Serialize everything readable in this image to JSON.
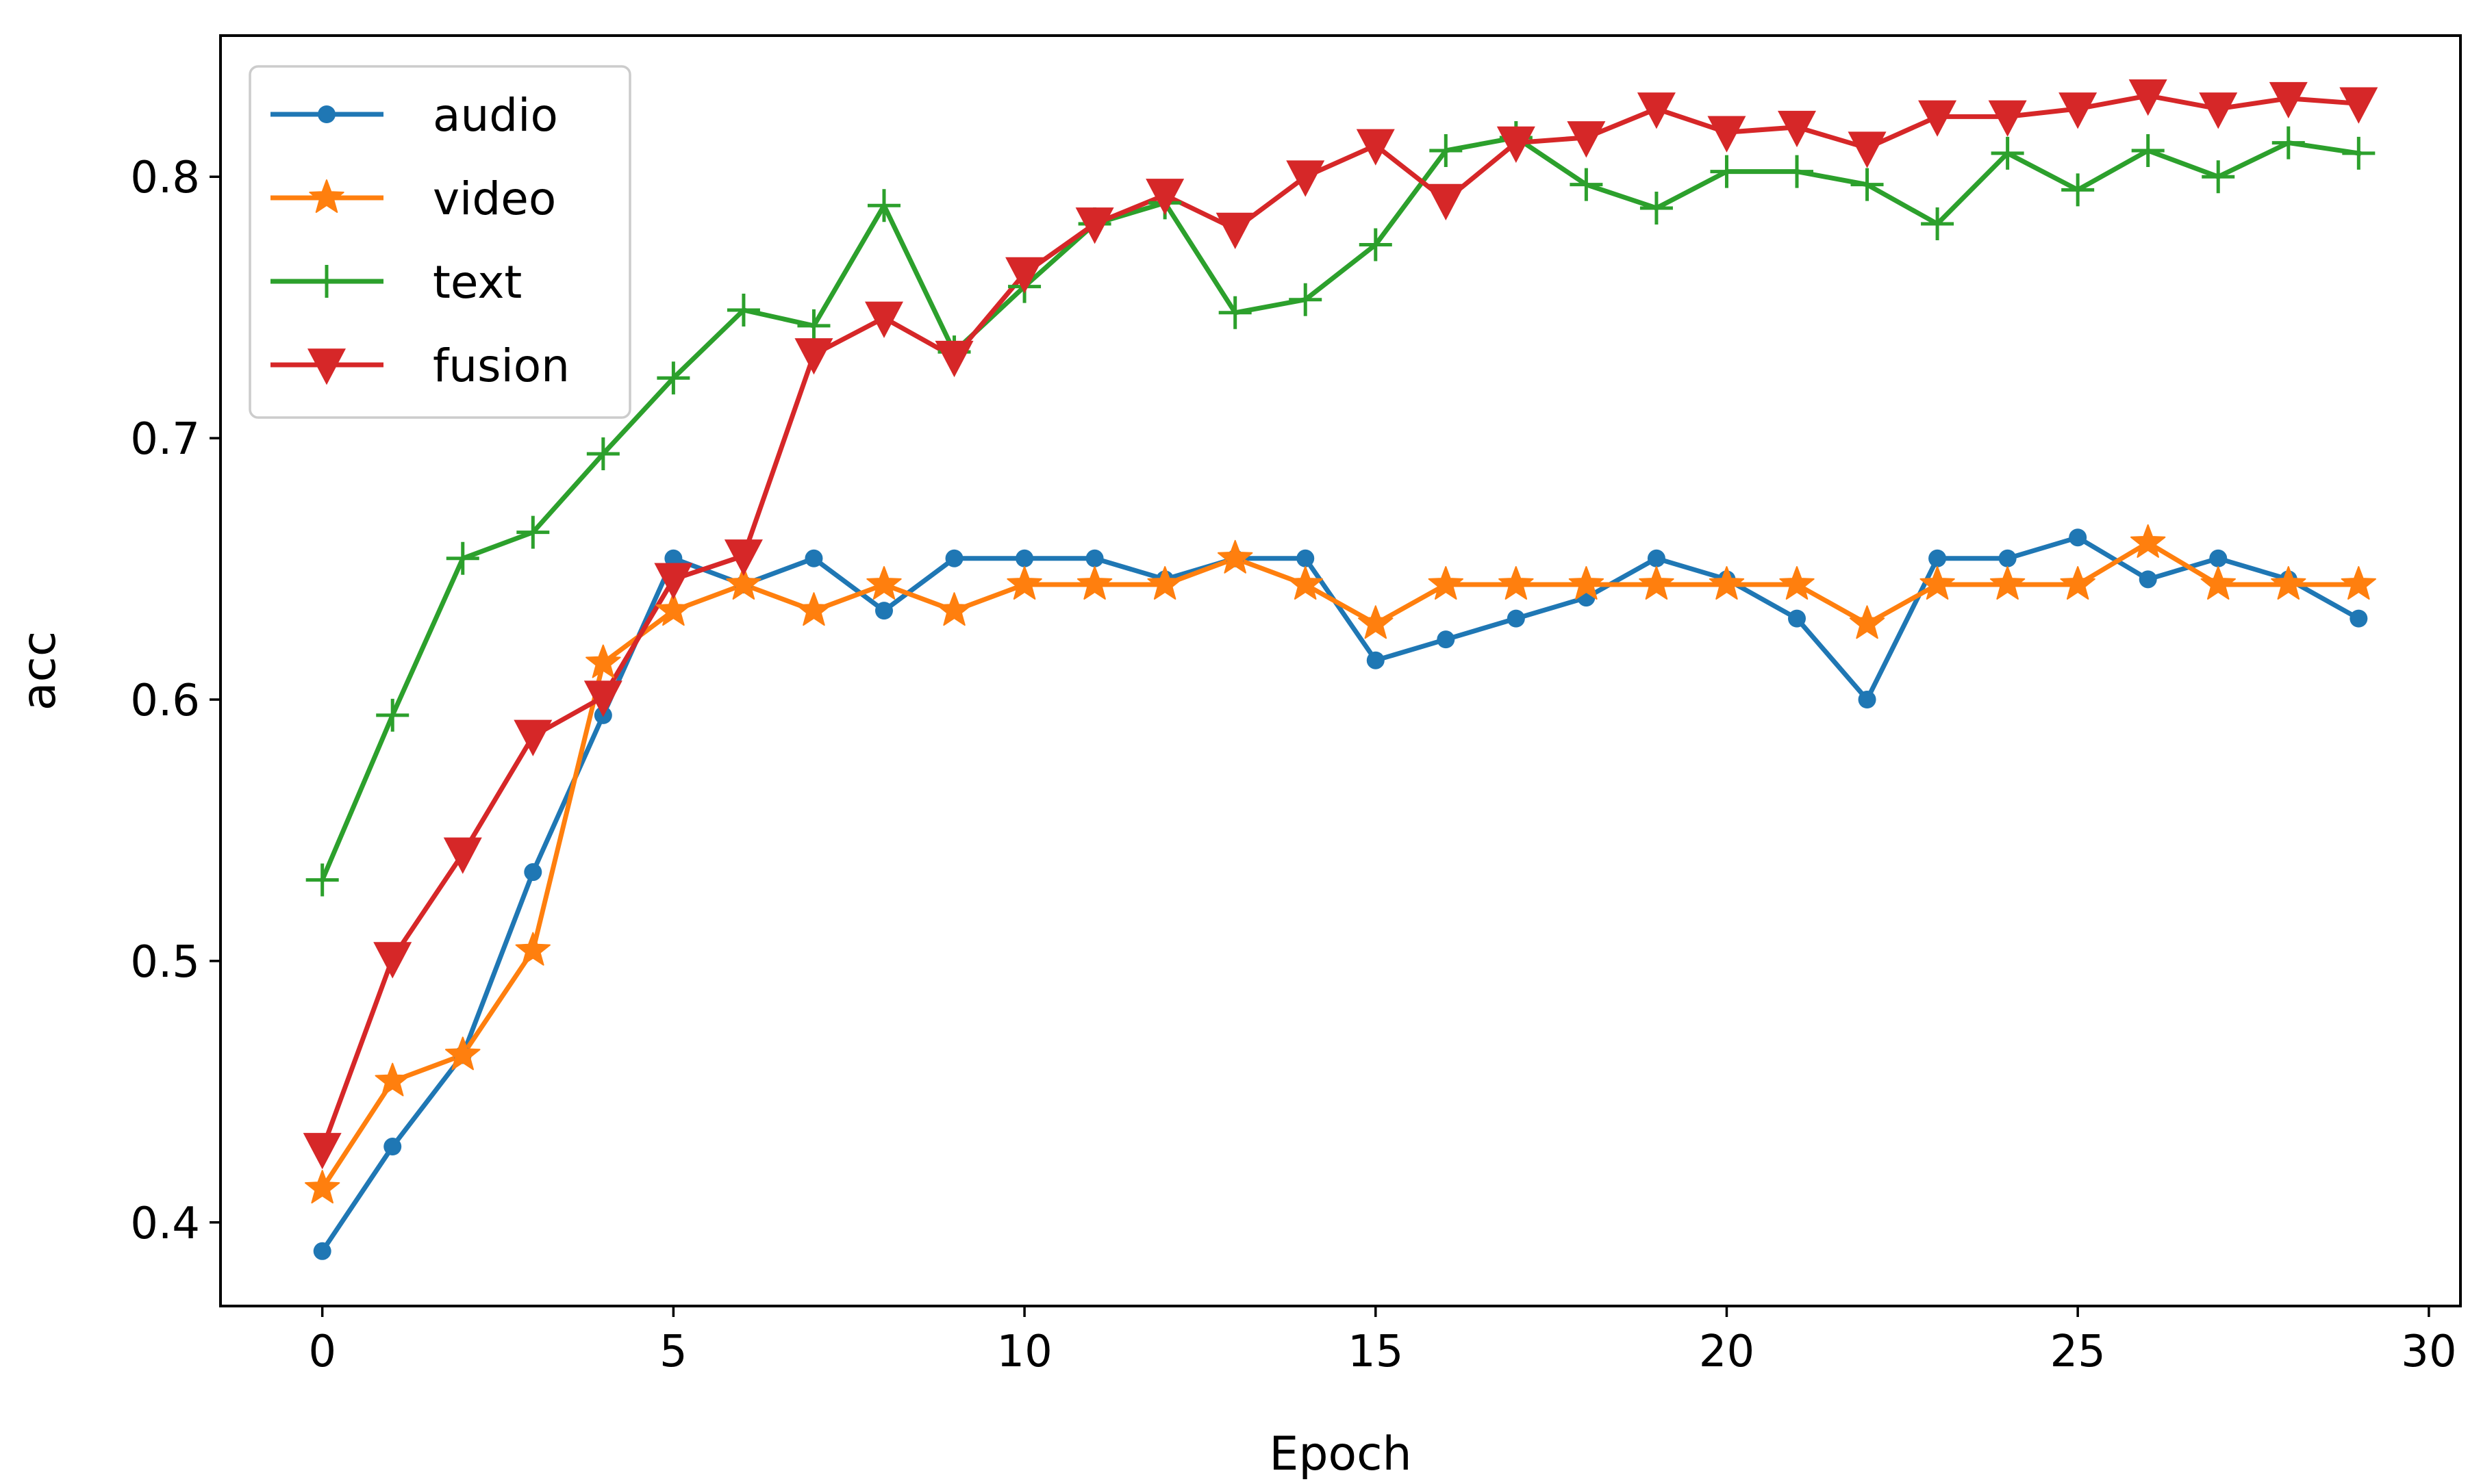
{
  "chart_data": {
    "type": "line",
    "title": "",
    "xlabel": "Epoch",
    "ylabel": "acc",
    "xlim": [
      -1.45,
      30.45
    ],
    "ylim": [
      0.368,
      0.854
    ],
    "xticks": [
      0,
      5,
      10,
      15,
      20,
      25,
      30
    ],
    "xtick_labels": [
      "0",
      "5",
      "10",
      "15",
      "20",
      "25",
      "30"
    ],
    "yticks": [
      0.4,
      0.5,
      0.6,
      0.7,
      0.8
    ],
    "ytick_labels": [
      "0.4",
      "0.5",
      "0.6",
      "0.7",
      "0.8"
    ],
    "grid": false,
    "legend_position": "top-left",
    "x": [
      0,
      1,
      2,
      3,
      4,
      5,
      6,
      7,
      8,
      9,
      10,
      11,
      12,
      13,
      14,
      15,
      16,
      17,
      18,
      19,
      20,
      21,
      22,
      23,
      24,
      25,
      26,
      27,
      28,
      29
    ],
    "series": [
      {
        "name": "audio",
        "color": "#1f77b4",
        "marker": "circle",
        "values": [
          0.389,
          0.429,
          0.464,
          0.534,
          0.594,
          0.654,
          0.644,
          0.654,
          0.634,
          0.654,
          0.654,
          0.654,
          0.646,
          0.654,
          0.654,
          0.615,
          0.623,
          0.631,
          0.639,
          0.654,
          0.646,
          0.631,
          0.6,
          0.654,
          0.654,
          0.662,
          0.646,
          0.654,
          0.646,
          0.631
        ]
      },
      {
        "name": "video",
        "color": "#ff7f0e",
        "marker": "star",
        "values": [
          0.413,
          0.454,
          0.464,
          0.504,
          0.614,
          0.634,
          0.644,
          0.634,
          0.644,
          0.634,
          0.644,
          0.644,
          0.644,
          0.654,
          0.644,
          0.629,
          0.644,
          0.644,
          0.644,
          0.644,
          0.644,
          0.644,
          0.629,
          0.644,
          0.644,
          0.644,
          0.66,
          0.644,
          0.644,
          0.644
        ]
      },
      {
        "name": "text",
        "color": "#2ca02c",
        "marker": "plus",
        "values": [
          0.531,
          0.594,
          0.654,
          0.664,
          0.694,
          0.723,
          0.749,
          0.743,
          0.789,
          0.733,
          0.758,
          0.782,
          0.79,
          0.748,
          0.753,
          0.774,
          0.81,
          0.815,
          0.797,
          0.788,
          0.802,
          0.802,
          0.797,
          0.782,
          0.809,
          0.795,
          0.81,
          0.8,
          0.813,
          0.809
        ]
      },
      {
        "name": "fusion",
        "color": "#d62728",
        "marker": "triangle-down",
        "values": [
          0.428,
          0.501,
          0.541,
          0.586,
          0.601,
          0.646,
          0.655,
          0.732,
          0.746,
          0.731,
          0.763,
          0.782,
          0.793,
          0.78,
          0.8,
          0.812,
          0.791,
          0.813,
          0.815,
          0.826,
          0.817,
          0.819,
          0.811,
          0.823,
          0.823,
          0.826,
          0.831,
          0.826,
          0.83,
          0.828
        ]
      }
    ]
  }
}
